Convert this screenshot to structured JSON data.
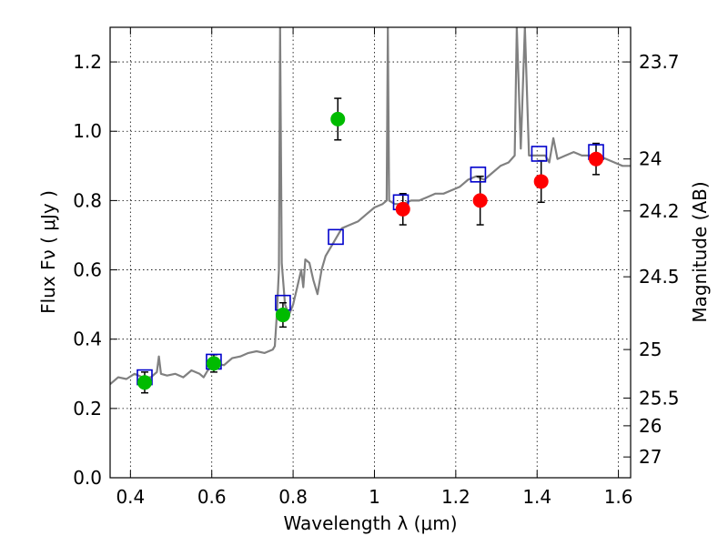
{
  "chart_data": {
    "type": "scatter",
    "xlabel": "Wavelength  λ (μm)",
    "ylabel": "Flux  Fν  ( μJy )",
    "ylabel_right": "Magnitude (AB)",
    "xlim": [
      0.35,
      1.63
    ],
    "ylim": [
      0.0,
      1.3
    ],
    "grid": true,
    "x_ticks": [
      {
        "value": 0.4,
        "label": "0.4"
      },
      {
        "value": 0.6,
        "label": "0.6"
      },
      {
        "value": 0.8,
        "label": "0.8"
      },
      {
        "value": 1.0,
        "label": "1"
      },
      {
        "value": 1.2,
        "label": "1.2"
      },
      {
        "value": 1.4,
        "label": "1.4"
      },
      {
        "value": 1.6,
        "label": "1.6"
      }
    ],
    "y_ticks": [
      {
        "value": 0.0,
        "label": "0.0"
      },
      {
        "value": 0.2,
        "label": "0.2"
      },
      {
        "value": 0.4,
        "label": "0.4"
      },
      {
        "value": 0.6,
        "label": "0.6"
      },
      {
        "value": 0.8,
        "label": "0.8"
      },
      {
        "value": 1.0,
        "label": "1.0"
      },
      {
        "value": 1.2,
        "label": "1.2"
      }
    ],
    "right_ticks": [
      {
        "flux": 1.2,
        "label": "23.7"
      },
      {
        "flux": 0.92,
        "label": "24"
      },
      {
        "flux": 0.77,
        "label": "24.2"
      },
      {
        "flux": 0.58,
        "label": "24.5"
      },
      {
        "flux": 0.37,
        "label": "25"
      },
      {
        "flux": 0.23,
        "label": "25.5"
      },
      {
        "flux": 0.15,
        "label": "26"
      },
      {
        "flux": 0.06,
        "label": "27"
      }
    ],
    "model_spectrum": {
      "color": "#808080",
      "points": [
        [
          0.35,
          0.27
        ],
        [
          0.37,
          0.29
        ],
        [
          0.39,
          0.285
        ],
        [
          0.41,
          0.3
        ],
        [
          0.43,
          0.29
        ],
        [
          0.45,
          0.29
        ],
        [
          0.465,
          0.305
        ],
        [
          0.47,
          0.35
        ],
        [
          0.475,
          0.3
        ],
        [
          0.49,
          0.295
        ],
        [
          0.51,
          0.3
        ],
        [
          0.53,
          0.29
        ],
        [
          0.55,
          0.31
        ],
        [
          0.57,
          0.3
        ],
        [
          0.58,
          0.29
        ],
        [
          0.59,
          0.31
        ],
        [
          0.61,
          0.33
        ],
        [
          0.63,
          0.325
        ],
        [
          0.65,
          0.345
        ],
        [
          0.67,
          0.35
        ],
        [
          0.69,
          0.36
        ],
        [
          0.71,
          0.365
        ],
        [
          0.73,
          0.36
        ],
        [
          0.75,
          0.37
        ],
        [
          0.755,
          0.38
        ],
        [
          0.76,
          0.47
        ],
        [
          0.765,
          0.6
        ],
        [
          0.768,
          1.3
        ],
        [
          0.772,
          0.62
        ],
        [
          0.78,
          0.5
        ],
        [
          0.79,
          0.47
        ],
        [
          0.8,
          0.5
        ],
        [
          0.81,
          0.55
        ],
        [
          0.82,
          0.6
        ],
        [
          0.825,
          0.55
        ],
        [
          0.83,
          0.63
        ],
        [
          0.84,
          0.62
        ],
        [
          0.85,
          0.57
        ],
        [
          0.86,
          0.53
        ],
        [
          0.87,
          0.6
        ],
        [
          0.88,
          0.64
        ],
        [
          0.9,
          0.68
        ],
        [
          0.92,
          0.72
        ],
        [
          0.94,
          0.73
        ],
        [
          0.96,
          0.74
        ],
        [
          0.98,
          0.76
        ],
        [
          1.0,
          0.78
        ],
        [
          1.02,
          0.79
        ],
        [
          1.03,
          0.8
        ],
        [
          1.033,
          1.3
        ],
        [
          1.036,
          0.8
        ],
        [
          1.05,
          0.79
        ],
        [
          1.07,
          0.79
        ],
        [
          1.09,
          0.8
        ],
        [
          1.11,
          0.8
        ],
        [
          1.13,
          0.81
        ],
        [
          1.15,
          0.82
        ],
        [
          1.17,
          0.82
        ],
        [
          1.19,
          0.83
        ],
        [
          1.21,
          0.84
        ],
        [
          1.23,
          0.86
        ],
        [
          1.25,
          0.87
        ],
        [
          1.27,
          0.86
        ],
        [
          1.29,
          0.88
        ],
        [
          1.31,
          0.9
        ],
        [
          1.33,
          0.91
        ],
        [
          1.345,
          0.93
        ],
        [
          1.35,
          1.3
        ],
        [
          1.36,
          0.95
        ],
        [
          1.37,
          1.3
        ],
        [
          1.38,
          0.93
        ],
        [
          1.4,
          0.93
        ],
        [
          1.42,
          0.93
        ],
        [
          1.43,
          0.91
        ],
        [
          1.44,
          0.98
        ],
        [
          1.45,
          0.92
        ],
        [
          1.47,
          0.93
        ],
        [
          1.49,
          0.94
        ],
        [
          1.51,
          0.93
        ],
        [
          1.53,
          0.93
        ],
        [
          1.55,
          0.93
        ],
        [
          1.57,
          0.92
        ],
        [
          1.59,
          0.91
        ],
        [
          1.61,
          0.9
        ],
        [
          1.63,
          0.9
        ]
      ]
    },
    "series": [
      {
        "marker": "square-open",
        "color": "#0000cc",
        "x": [
          0.435,
          0.605,
          0.775,
          0.905,
          1.065,
          1.255,
          1.405,
          1.545
        ],
        "y": [
          0.29,
          0.335,
          0.505,
          0.695,
          0.795,
          0.875,
          0.935,
          0.94
        ]
      },
      {
        "marker": "circle",
        "color": "#00bb00",
        "x": [
          0.435,
          0.605,
          0.775,
          0.91
        ],
        "y": [
          0.275,
          0.33,
          0.47,
          1.035
        ],
        "yerr": [
          0.03,
          0.025,
          0.035,
          0.06
        ]
      },
      {
        "marker": "circle",
        "color": "#ff0000",
        "x": [
          1.07,
          1.26,
          1.41,
          1.545
        ],
        "y": [
          0.775,
          0.8,
          0.855,
          0.92
        ],
        "yerr": [
          0.045,
          0.07,
          0.06,
          0.045
        ]
      }
    ]
  }
}
